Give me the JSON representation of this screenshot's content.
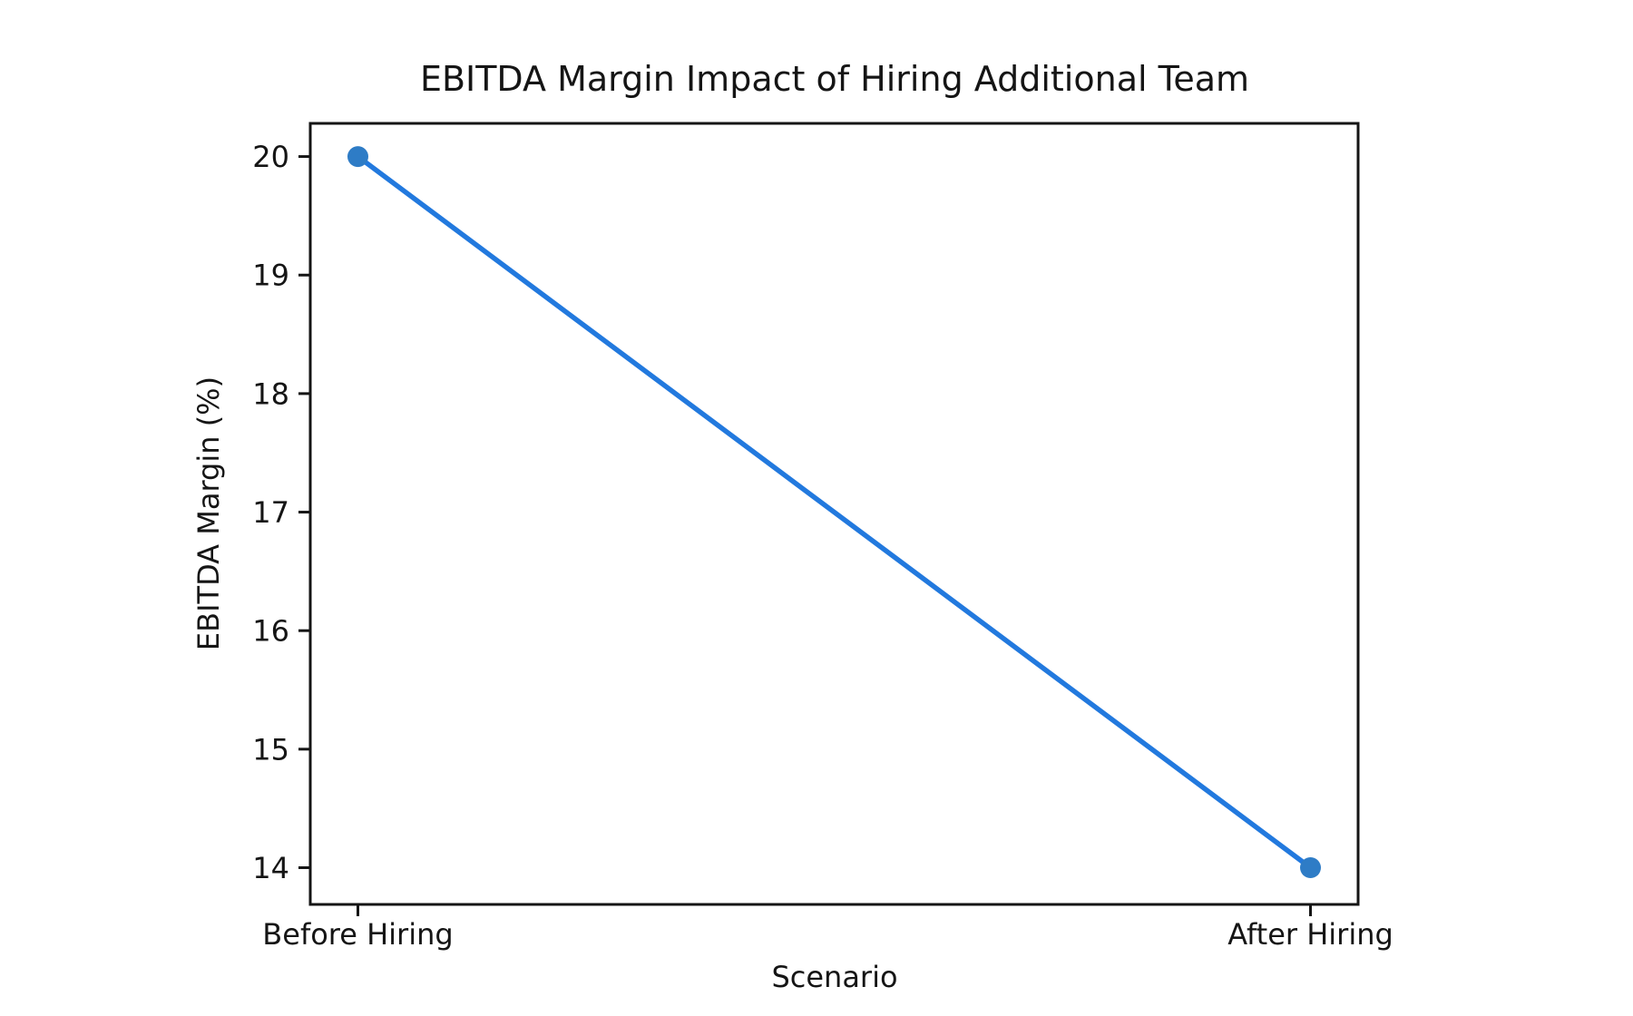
{
  "chart_data": {
    "type": "line",
    "title": "EBITDA Margin Impact of Hiring Additional Team",
    "xlabel": "Scenario",
    "ylabel": "EBITDA Margin (%)",
    "categories": [
      "Before Hiring",
      "After Hiring"
    ],
    "values": [
      20,
      14
    ],
    "yticks": [
      14,
      15,
      16,
      17,
      18,
      19,
      20
    ],
    "ylim": [
      13.69,
      20.28
    ],
    "xlim": [
      -0.05,
      1.05
    ],
    "grid": false,
    "legend": "none",
    "line_color": "#2279de",
    "marker_color": "#2e7cc6",
    "marker": "circle",
    "axis_color": "#151515",
    "background_color": "#ffffff"
  }
}
